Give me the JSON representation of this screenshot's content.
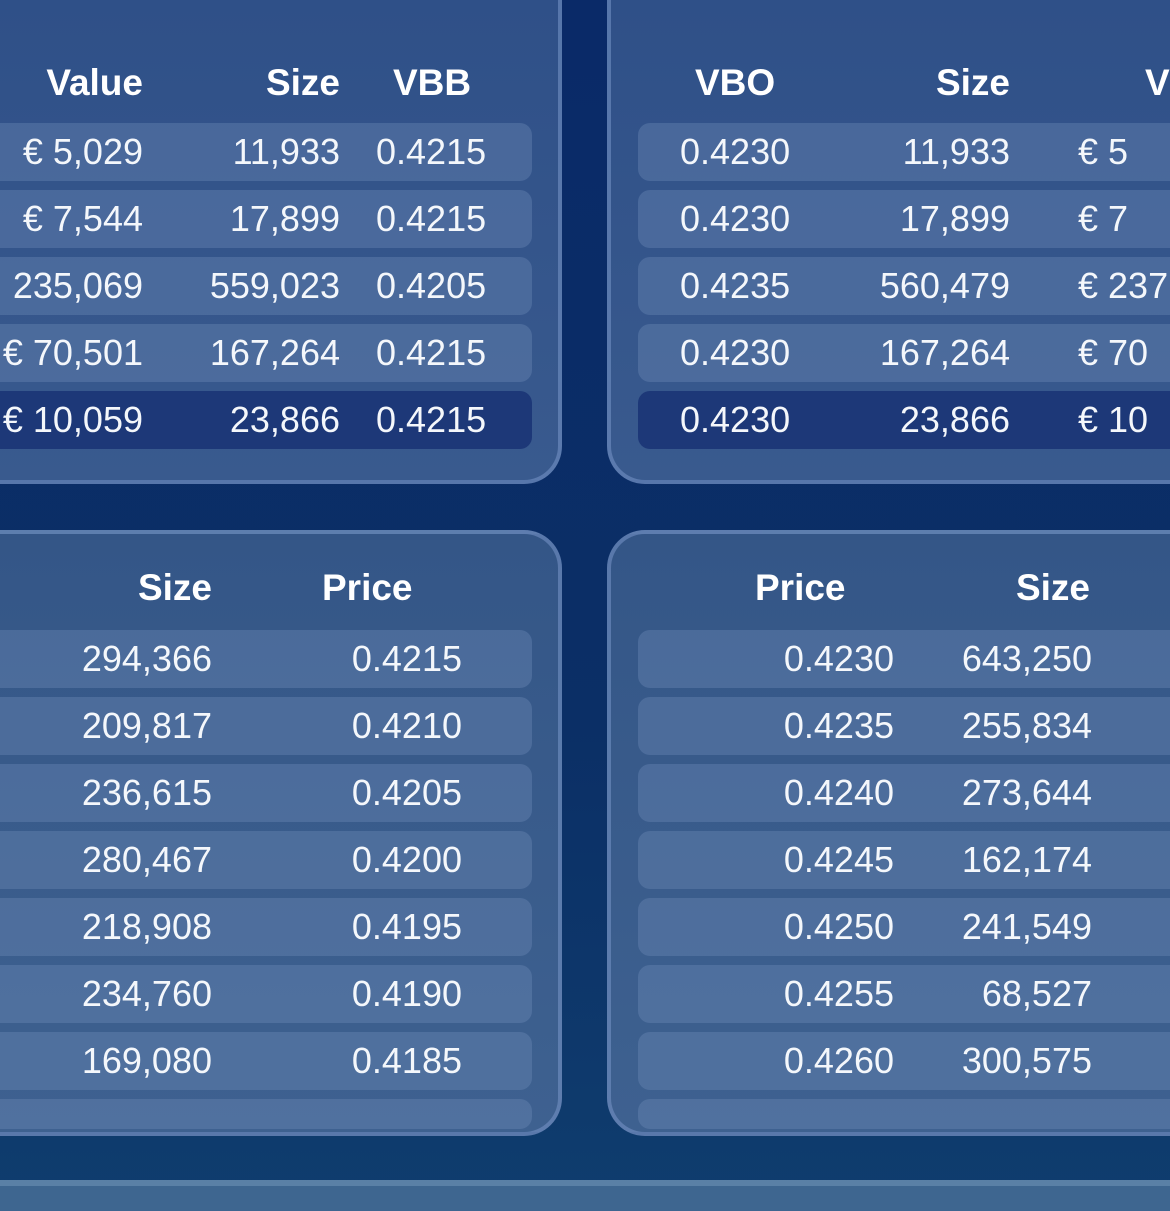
{
  "bid_trades": {
    "headers": {
      "value": "Value",
      "size": "Size",
      "vbb": "VBB"
    },
    "rows": [
      {
        "value": "€ 5,029",
        "size": "11,933",
        "vbb": "0.4215"
      },
      {
        "value": "€ 7,544",
        "size": "17,899",
        "vbb": "0.4215"
      },
      {
        "value": "235,069",
        "size": "559,023",
        "vbb": "0.4205"
      },
      {
        "value": "€ 70,501",
        "size": "167,264",
        "vbb": "0.4215"
      },
      {
        "value": "€ 10,059",
        "size": "23,866",
        "vbb": "0.4215",
        "selected": true
      }
    ]
  },
  "offer_trades": {
    "headers": {
      "vbo": "VBO",
      "size": "Size",
      "value": "V"
    },
    "rows": [
      {
        "vbo": "0.4230",
        "size": "11,933",
        "value": "€ 5"
      },
      {
        "vbo": "0.4230",
        "size": "17,899",
        "value": "€ 7"
      },
      {
        "vbo": "0.4235",
        "size": "560,479",
        "value": "€ 237"
      },
      {
        "vbo": "0.4230",
        "size": "167,264",
        "value": "€ 70"
      },
      {
        "vbo": "0.4230",
        "size": "23,866",
        "value": "€ 10",
        "selected": true
      }
    ]
  },
  "bids": {
    "headers": {
      "size": "Size",
      "price": "Price"
    },
    "rows": [
      {
        "size": "294,366",
        "price": "0.4215"
      },
      {
        "size": "209,817",
        "price": "0.4210"
      },
      {
        "size": "236,615",
        "price": "0.4205"
      },
      {
        "size": "280,467",
        "price": "0.4200"
      },
      {
        "size": "218,908",
        "price": "0.4195"
      },
      {
        "size": "234,760",
        "price": "0.4190"
      },
      {
        "size": "169,080",
        "price": "0.4185"
      }
    ]
  },
  "asks": {
    "headers": {
      "price": "Price",
      "size": "Size"
    },
    "rows": [
      {
        "price": "0.4230",
        "size": "643,250"
      },
      {
        "price": "0.4235",
        "size": "255,834"
      },
      {
        "price": "0.4240",
        "size": "273,644"
      },
      {
        "price": "0.4245",
        "size": "162,174"
      },
      {
        "price": "0.4250",
        "size": "241,549"
      },
      {
        "price": "0.4255",
        "size": "68,527"
      },
      {
        "price": "0.4260",
        "size": "300,575"
      }
    ]
  },
  "colors": {
    "background": "#0a2a68",
    "panel": "#34548a",
    "row": "#4a6590",
    "selected_row": "#1d3878"
  }
}
